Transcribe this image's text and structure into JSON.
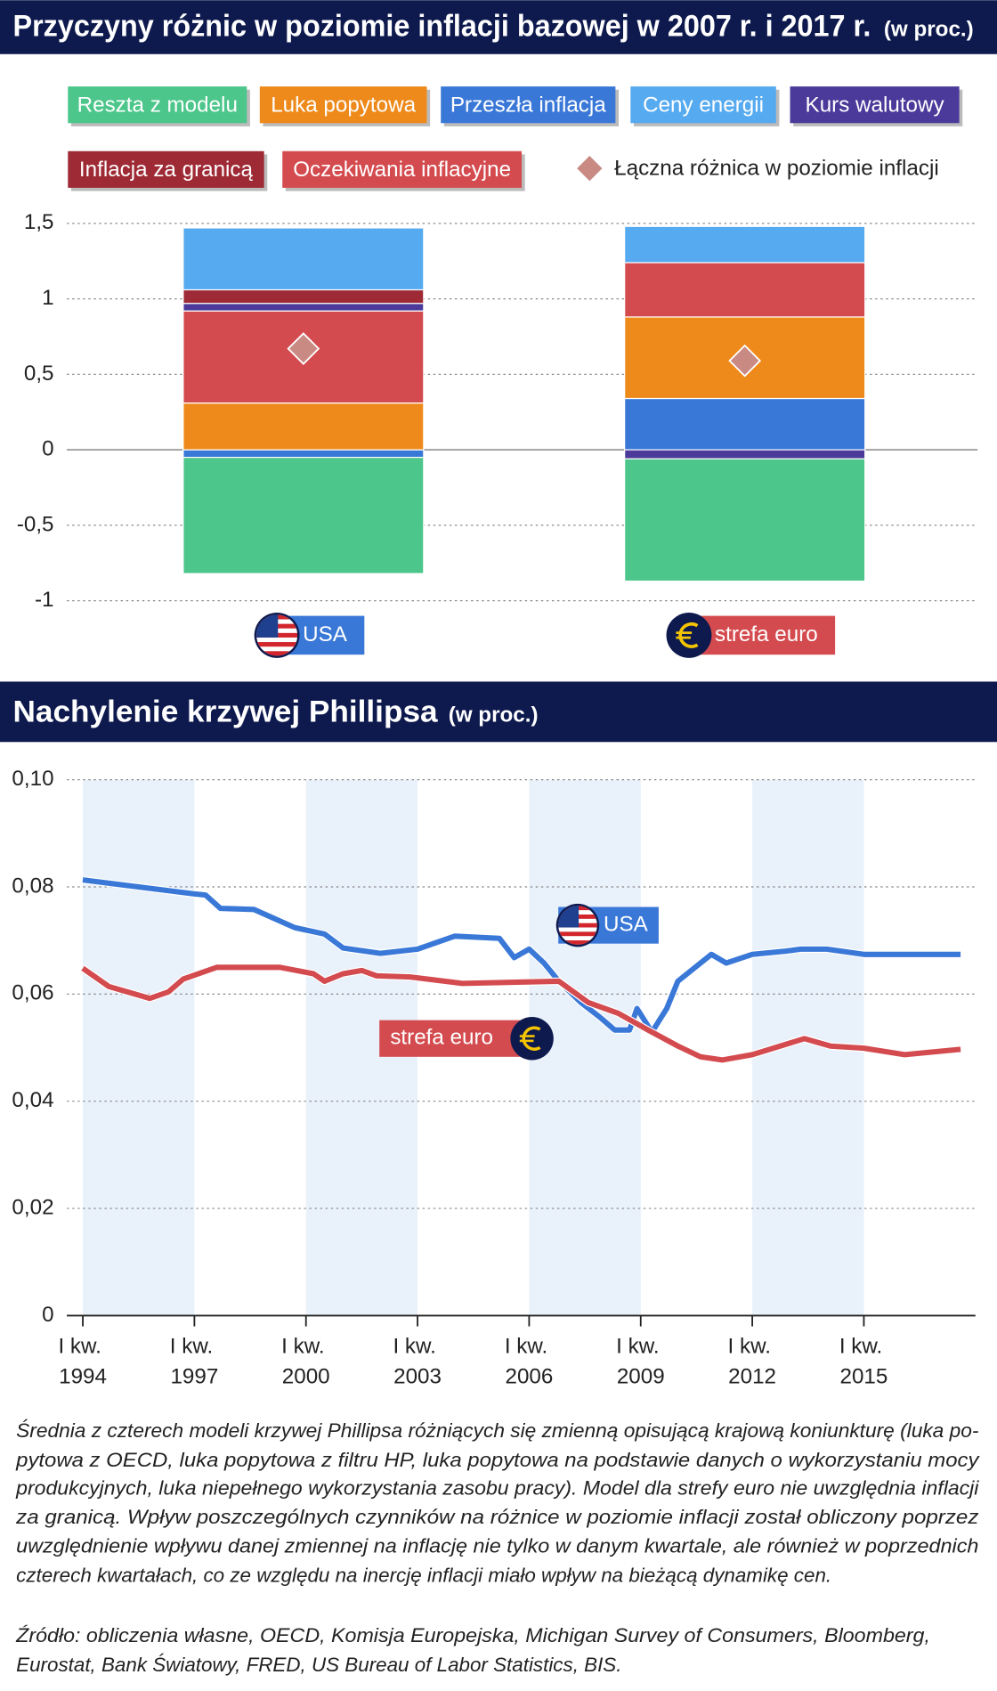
{
  "chart_data": [
    {
      "type": "bar",
      "stacked": true,
      "title": "Przyczyny różnic w poziomie inflacji bazowej w 2007 r. i 2017 r.",
      "unit": "(w proc.)",
      "categories": [
        "USA",
        "strefa euro"
      ],
      "category_colors": [
        "#3a78d8",
        "#d44b4f"
      ],
      "category_icons": [
        "us-flag",
        "euro"
      ],
      "series": [
        {
          "name": "Reszta z modelu",
          "color": "#4cc68a",
          "values": [
            -0.77,
            -0.81
          ]
        },
        {
          "name": "Luka popytowa",
          "color": "#ee8a1b",
          "values": [
            0.31,
            0.54
          ]
        },
        {
          "name": "Przeszła inflacja",
          "color": "#3a78d8",
          "values": [
            -0.05,
            0.34
          ]
        },
        {
          "name": "Ceny energii",
          "color": "#55aaf0",
          "values": [
            0.41,
            0.24
          ]
        },
        {
          "name": "Kurs walutowy",
          "color": "#4b3a9a",
          "values": [
            0.05,
            -0.06
          ]
        },
        {
          "name": "Inflacja za granicą",
          "color": "#9e2a35",
          "values": [
            0.09,
            0
          ]
        },
        {
          "name": "Oczekiwania inflacyjne",
          "color": "#d44b4f",
          "values": [
            0.61,
            0.36
          ]
        }
      ],
      "markers": {
        "name": "Łączna różnica w poziomie inflacji",
        "color": "#c98a84",
        "values": [
          0.67,
          0.59
        ]
      },
      "ylim": [
        -1,
        1.5
      ],
      "yticks": [
        {
          "value": 1.5,
          "label": "1,5"
        },
        1,
        {
          "value": 0.5,
          "label": "0,5"
        },
        0,
        {
          "value": -0.5,
          "label": "-0,5"
        },
        -1
      ],
      "grid": true
    },
    {
      "type": "line",
      "title": "Nachylenie krzywej Phillipsa",
      "unit": "(w proc.)",
      "series": [
        {
          "name": "USA",
          "color": "#3a78d8",
          "icon": "us-flag",
          "x": [
            1994.0,
            1995.5,
            1997.0,
            1997.3,
            1997.7,
            1998.6,
            1999.7,
            2000.5,
            2001.0,
            2002.0,
            2003.0,
            2004.0,
            2005.2,
            2005.6,
            2006.0,
            2006.4,
            2006.8,
            2007.4,
            2007.9,
            2008.3,
            2008.7,
            2008.9,
            2009.3,
            2009.7,
            2010.0,
            2010.9,
            2011.3,
            2012.0,
            2012.9,
            2013.3,
            2014.0,
            2015.0,
            2016.7,
            2017.6
          ],
          "values": [
            0.0813,
            0.08,
            0.0787,
            0.0785,
            0.076,
            0.0758,
            0.0724,
            0.0712,
            0.0686,
            0.0676,
            0.0684,
            0.0708,
            0.0704,
            0.0668,
            0.0684,
            0.0658,
            0.0624,
            0.0584,
            0.0557,
            0.0533,
            0.0533,
            0.0573,
            0.0529,
            0.0573,
            0.0624,
            0.0674,
            0.0658,
            0.0674,
            0.068,
            0.0684,
            0.0684,
            0.0674,
            0.0674,
            0.0674
          ]
        },
        {
          "name": "strefa euro",
          "color": "#d44b4f",
          "icon": "euro",
          "x": [
            1994.0,
            1994.7,
            1995.8,
            1996.3,
            1996.7,
            1997.6,
            1999.3,
            2000.2,
            2000.5,
            2001.0,
            2001.5,
            2001.9,
            2002.8,
            2004.2,
            2006.8,
            2007.6,
            2008.4,
            2009.2,
            2010.0,
            2010.6,
            2011.2,
            2012.0,
            2013.4,
            2014.1,
            2015.0,
            2016.1,
            2017.6
          ],
          "values": [
            0.0648,
            0.0614,
            0.0592,
            0.0604,
            0.0628,
            0.065,
            0.065,
            0.0638,
            0.0624,
            0.0638,
            0.0644,
            0.0634,
            0.0632,
            0.062,
            0.0624,
            0.0584,
            0.0564,
            0.0533,
            0.0503,
            0.0483,
            0.0477,
            0.0487,
            0.0517,
            0.0503,
            0.0499,
            0.0487,
            0.0497
          ]
        }
      ],
      "xlim": [
        1993.57,
        2018
      ],
      "xticks": [
        {
          "value": 1994,
          "label": "I kw. 1994"
        },
        {
          "value": 1997,
          "label": "I kw. 1997"
        },
        {
          "value": 2000,
          "label": "I kw. 2000"
        },
        {
          "value": 2003,
          "label": "I kw. 2003"
        },
        {
          "value": 2006,
          "label": "I kw. 2006"
        },
        {
          "value": 2009,
          "label": "I kw. 2009"
        },
        {
          "value": 2012,
          "label": "I kw. 2012"
        },
        {
          "value": 2015,
          "label": "I kw. 2015"
        }
      ],
      "ylim": [
        0,
        0.1
      ],
      "yticks": [
        {
          "value": 0.1,
          "label": "0,10"
        },
        {
          "value": 0.08,
          "label": "0,08"
        },
        {
          "value": 0.06,
          "label": "0,06"
        },
        {
          "value": 0.04,
          "label": "0,04"
        },
        {
          "value": 0.02,
          "label": "0,02"
        },
        0
      ],
      "grid": true,
      "shaded_bands": true
    }
  ],
  "note": [
    "Średnia z czterech modeli krzywej Phillipsa różniących się zmienną opisującą krajową koniunkturę (luka po-",
    "pytowa z OECD, luka popytowa z filtru HP, luka popytowa na podstawie danych o wykorzystaniu mocy",
    "produkcyjnych, luka niepełnego wykorzystania zasobu pracy). Model dla strefy euro nie uwzględnia inflacji",
    "za granicą. Wpływ poszczególnych czynników na różnice w poziomie inflacji został obliczony poprzez",
    "uwzględnienie wpływu danej zmiennej na inflację nie tylko w danym kwartale, ale również w poprzednich",
    "czterech kwartałach, co ze względu na inercję inflacji miało wpływ na bieżącą dynamikę cen."
  ],
  "source": [
    "Źródło: obliczenia własne, OECD, Komisja Europejska, Michigan Survey of Consumers, Bloomberg,",
    "Eurostat, Bank Światowy, FRED, US Bureau of Labor Statistics, BIS."
  ]
}
